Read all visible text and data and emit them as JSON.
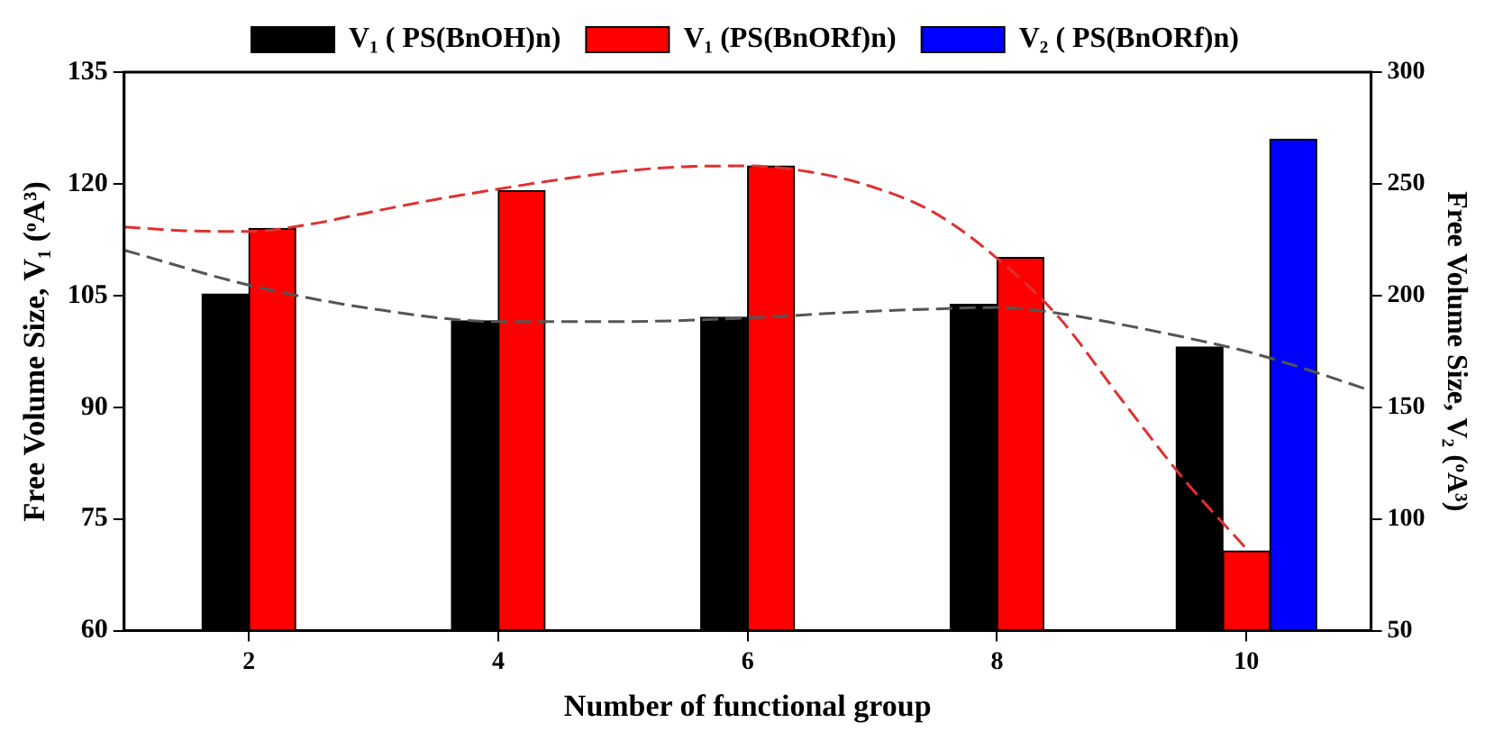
{
  "chart_data": {
    "type": "bar",
    "xlabel": "Number of functional group",
    "ylabel": "Free Volume Size, V₁ (ᵒA³)",
    "y2label": "Free Volume Size, V₂ (ᵒA³)",
    "x": [
      2,
      4,
      6,
      8,
      10
    ],
    "xlim": [
      1,
      11
    ],
    "xticks": [
      2,
      4,
      6,
      8,
      10
    ],
    "ylim": [
      60,
      135
    ],
    "yticks": [
      60,
      75,
      90,
      105,
      120,
      135
    ],
    "y2lim": [
      50,
      300
    ],
    "y2ticks": [
      50,
      100,
      150,
      200,
      250,
      300
    ],
    "legend": "top",
    "series": [
      {
        "name": "V₁ ( PS(BnOH)n)",
        "color": "#000000",
        "values": [
          105.2,
          101.6,
          102.1,
          103.8,
          98.1
        ]
      },
      {
        "name": "V₁ (PS(BnORf)n)",
        "color": "#ff0000",
        "values": [
          114.0,
          119.1,
          122.4,
          110.1,
          70.7
        ]
      },
      {
        "name": "V₂ ( PS(BnORf)n)",
        "color": "#0000ff",
        "axis": "y2",
        "values": [
          null,
          null,
          null,
          null,
          270
        ]
      },
      {
        "type": "line",
        "line_style": "dashed",
        "color": "#555555",
        "x": [
          1,
          2,
          3,
          4,
          5,
          6,
          7,
          7.5,
          8,
          8.5,
          9,
          9.5,
          10,
          10.5,
          11
        ],
        "values": [
          111.1,
          106.4,
          103.2,
          101.5,
          101.5,
          102.0,
          102.9,
          103.2,
          103.4,
          102.6,
          101.1,
          99.4,
          97.5,
          95.0,
          92.2
        ]
      },
      {
        "type": "line",
        "line_style": "dashed",
        "color": "#e03030",
        "x": [
          1,
          1.5,
          2,
          2.5,
          3,
          3.5,
          4,
          4.5,
          5,
          5.5,
          6,
          6.5,
          7,
          7.5,
          8,
          8.5,
          9,
          9.5,
          10
        ],
        "values": [
          114.2,
          113.7,
          113.6,
          114.6,
          116.3,
          117.9,
          119.3,
          120.6,
          121.7,
          122.3,
          122.4,
          121.6,
          119.6,
          116.1,
          110.0,
          102.0,
          91.0,
          80.3,
          71.0
        ]
      }
    ]
  }
}
